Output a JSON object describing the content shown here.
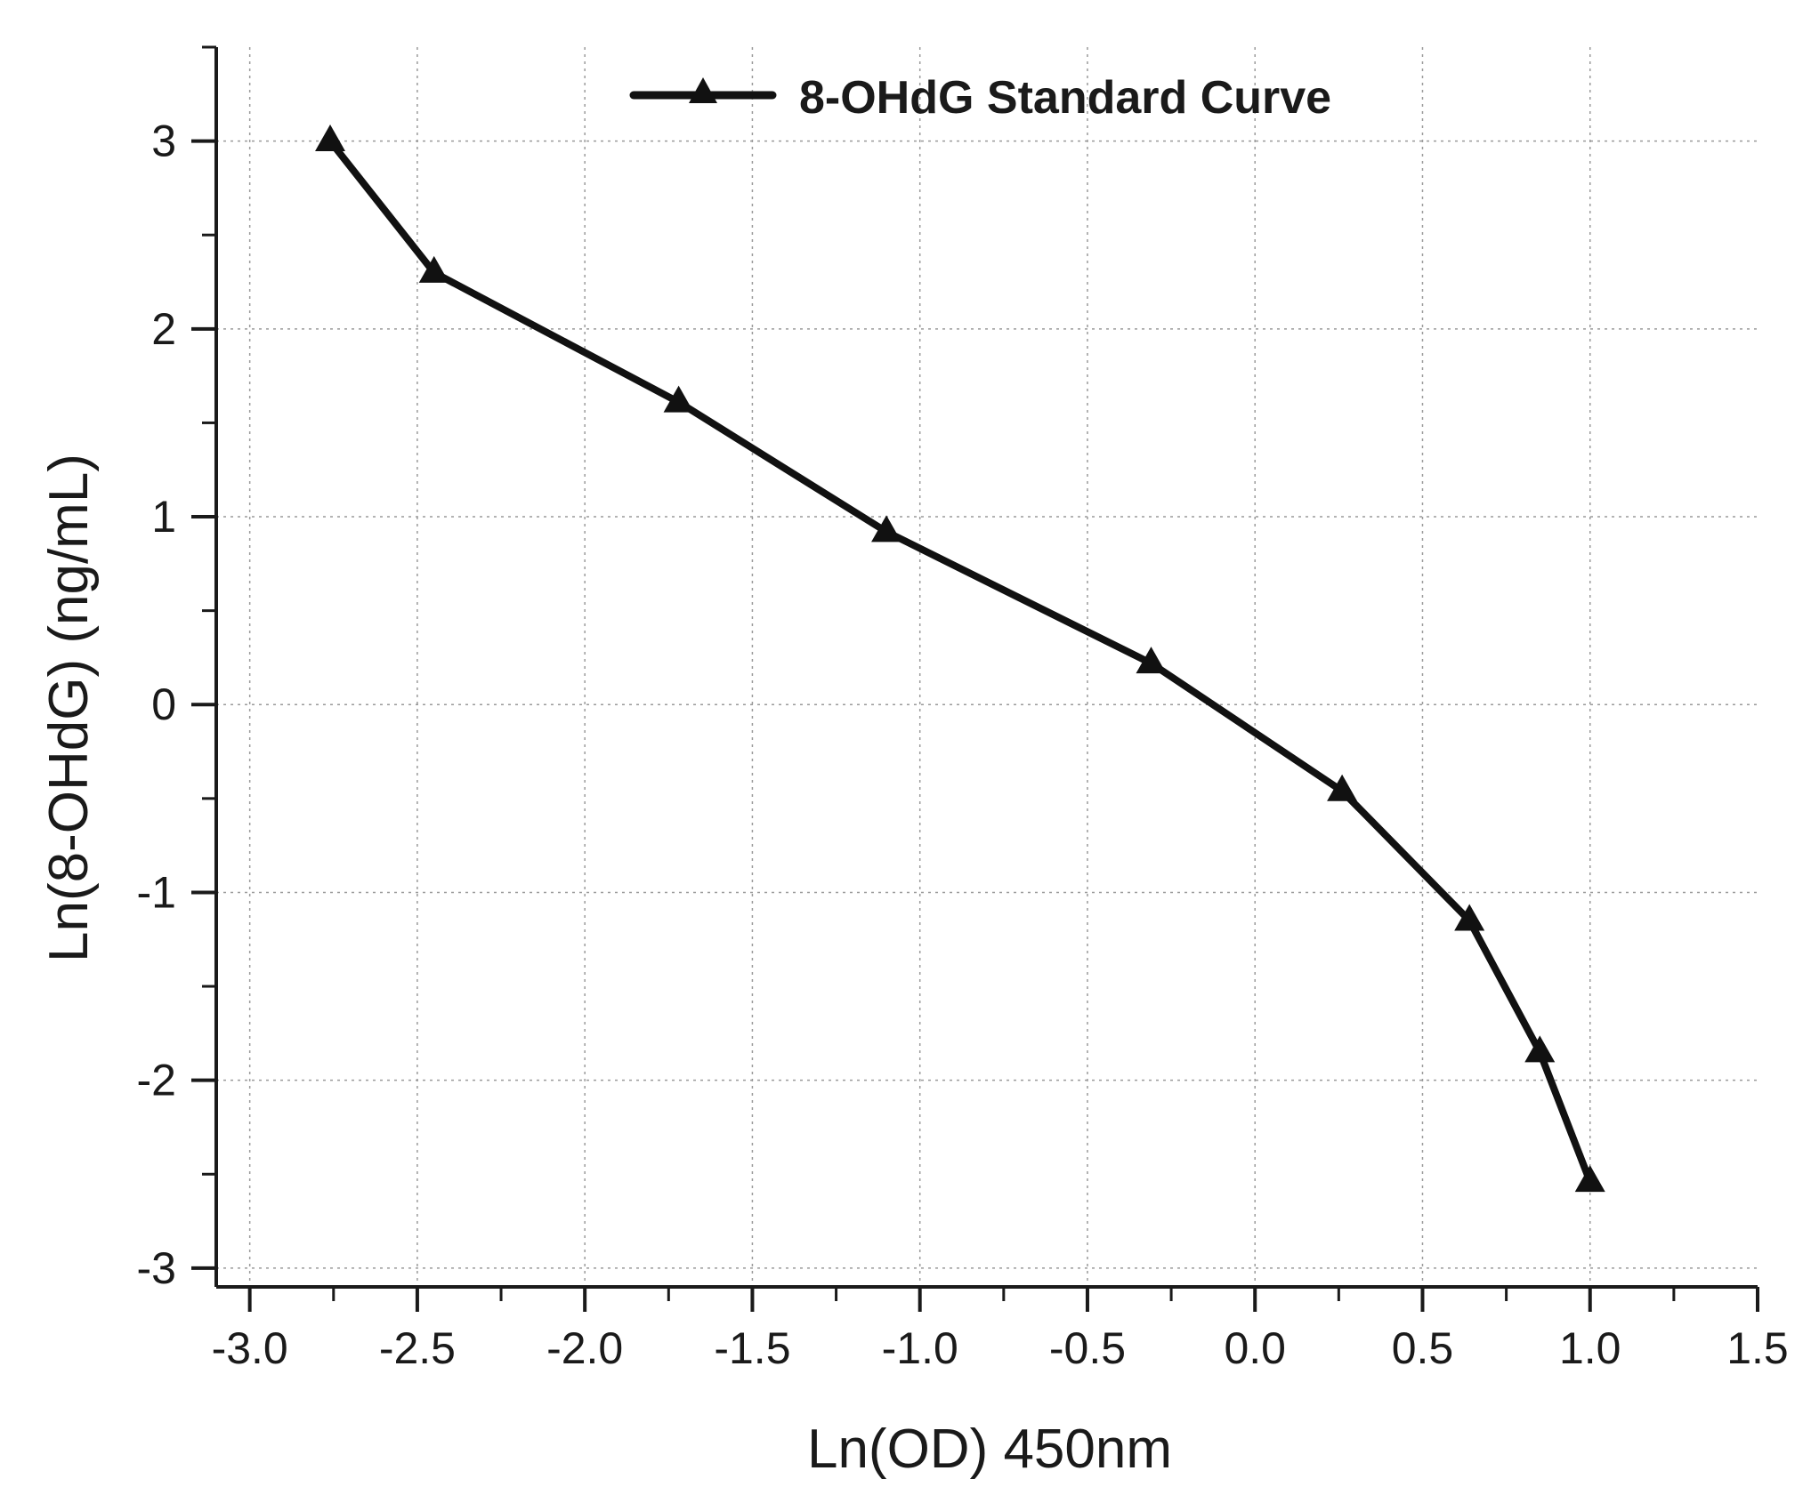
{
  "chart_data": {
    "type": "line",
    "title": "",
    "xlabel": "Ln(OD) 450nm",
    "ylabel": "Ln(8-OHdG) (ng/mL)",
    "xlim": [
      -3.1,
      1.5
    ],
    "ylim": [
      -3.1,
      3.5
    ],
    "x_ticks": [
      -3.0,
      -2.5,
      -2.0,
      -1.5,
      -1.0,
      -0.5,
      0.0,
      0.5,
      1.0,
      1.5
    ],
    "x_tick_labels": [
      "-3.0",
      "-2.5",
      "-2.0",
      "-1.5",
      "-1.0",
      "-0.5",
      "0.0",
      "0.5",
      "1.0",
      "1.5"
    ],
    "y_ticks": [
      -3,
      -2,
      -1,
      0,
      1,
      2,
      3
    ],
    "y_tick_labels": [
      "-3",
      "-2",
      "-1",
      "0",
      "1",
      "2",
      "3"
    ],
    "grid": true,
    "legend_position": "top-center",
    "series": [
      {
        "name": "8-OHdG Standard Curve",
        "marker": "triangle",
        "color": "#111111",
        "x": [
          -2.76,
          -2.45,
          -1.72,
          -1.1,
          -0.31,
          0.26,
          0.64,
          0.85,
          1.0
        ],
        "y": [
          3.0,
          2.3,
          1.61,
          0.92,
          0.22,
          -0.46,
          -1.15,
          -1.85,
          -2.54
        ]
      }
    ]
  }
}
